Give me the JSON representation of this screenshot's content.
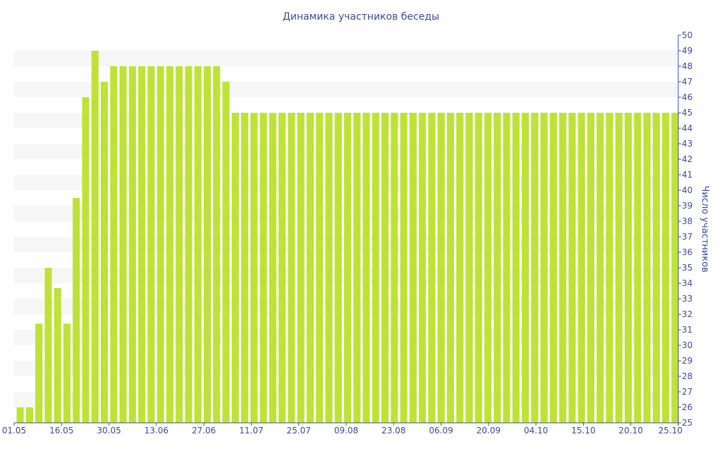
{
  "chart_data": {
    "type": "bar",
    "title": "Динамика участников беседы",
    "xlabel": "",
    "ylabel": "Число участников",
    "ylim": [
      25,
      50
    ],
    "y_ticks": [
      25,
      26,
      27,
      28,
      29,
      30,
      31,
      32,
      33,
      34,
      35,
      36,
      37,
      38,
      39,
      40,
      41,
      42,
      43,
      44,
      45,
      46,
      47,
      48,
      49,
      50
    ],
    "x_tick_labels": [
      "01.05",
      "16.05",
      "30.05",
      "13.06",
      "27.06",
      "11.07",
      "25.07",
      "09.08",
      "23.08",
      "06.09",
      "20.09",
      "04.10",
      "15.10",
      "20.10",
      "25.10"
    ],
    "grid": "alternating horizontal bands",
    "y_axis_position": "right",
    "colors": {
      "bar": "#bfe236",
      "band": "#f6f6f6",
      "axis": "#3a4a8f",
      "text": "#3a4a8f"
    },
    "values": [
      26,
      26,
      31.4,
      35,
      33.7,
      31.4,
      39.5,
      46,
      49,
      47,
      48,
      48,
      48,
      48,
      48,
      48,
      48,
      48,
      48,
      48,
      48,
      48,
      47,
      45,
      45,
      45,
      45,
      45,
      45,
      45,
      45,
      45,
      45,
      45,
      45,
      45,
      45,
      45,
      45,
      45,
      45,
      45,
      45,
      45,
      45,
      45,
      45,
      45,
      45,
      45,
      45,
      45,
      45,
      45,
      45,
      45,
      45,
      45,
      45,
      45,
      45,
      45,
      45,
      45,
      45,
      45,
      45,
      45,
      45,
      45,
      45
    ]
  }
}
